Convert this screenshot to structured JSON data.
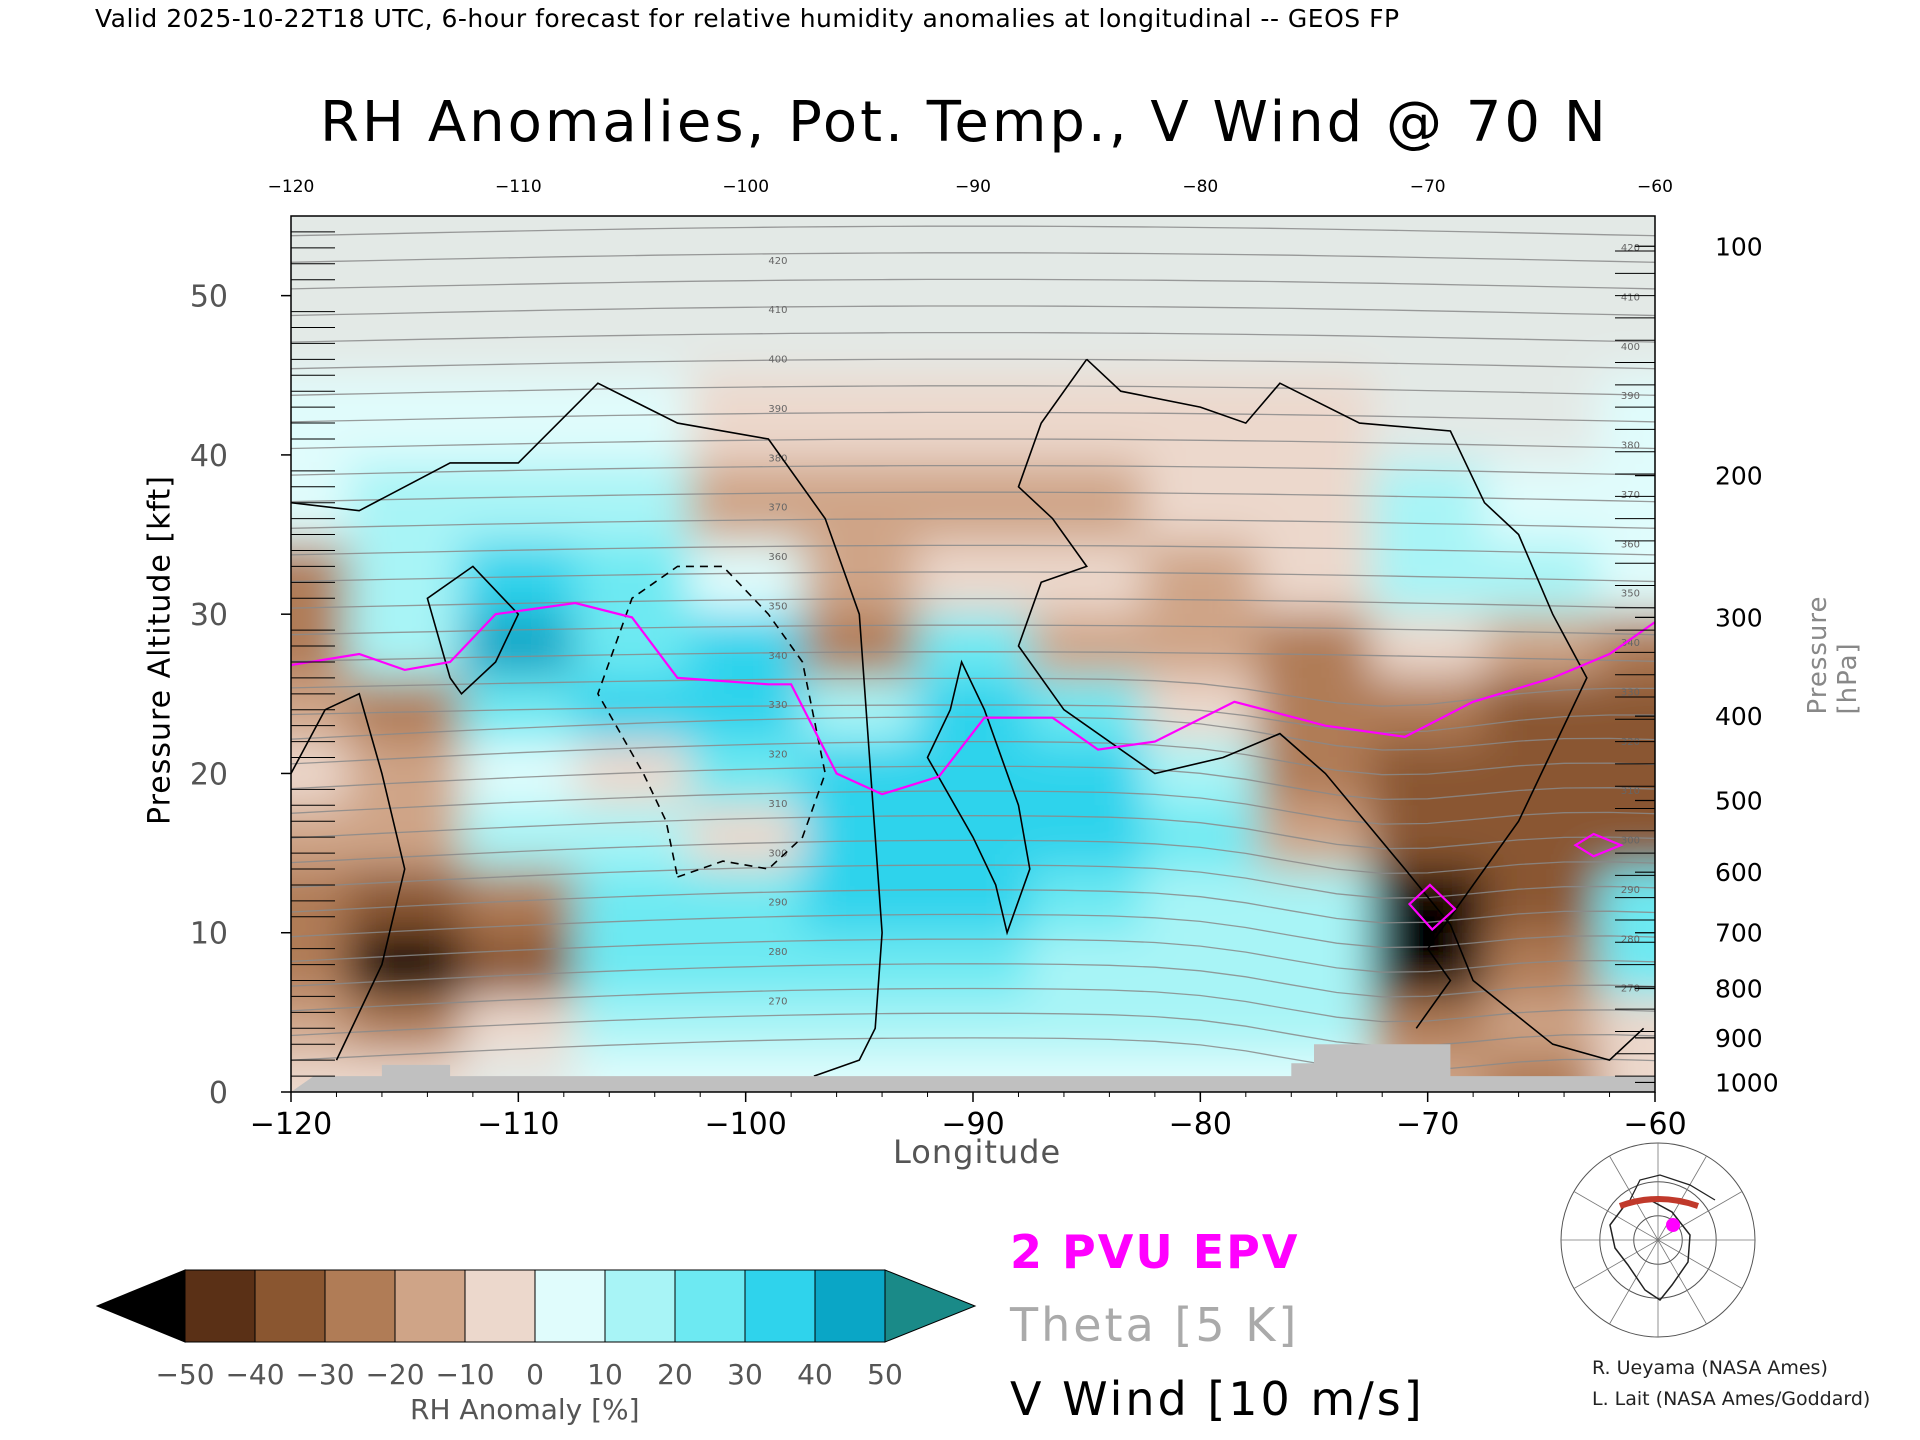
{
  "header": {
    "valid_line": "Valid 2025-10-22T18 UTC, 6-hour forecast for relative humidity anomalies at longitudinal -- GEOS FP",
    "title": "RH Anomalies, Pot. Temp., V Wind @ 70 N"
  },
  "chart_data": {
    "type": "heatmap",
    "title": "RH Anomalies, Pot. Temp., V Wind @ 70 N",
    "xlabel": "Longitude",
    "ylabel_left": "Pressure Altitude [kft]",
    "ylabel_right": "Pressure [hPa]",
    "xlim": [
      -120,
      -60
    ],
    "ylim": [
      0,
      55
    ],
    "x_ticks": [
      -120,
      -110,
      -100,
      -90,
      -80,
      -70,
      -60
    ],
    "x_tick_labels": [
      "−120",
      "−110",
      "−100",
      "−90",
      "−80",
      "−70",
      "−60"
    ],
    "y_ticks": [
      0,
      10,
      20,
      30,
      40,
      50
    ],
    "right_axis": {
      "labels": [
        "100",
        "200",
        "300",
        "400",
        "500",
        "600",
        "700",
        "800",
        "900",
        "1000"
      ],
      "kft": [
        53.1,
        38.7,
        29.8,
        23.6,
        18.3,
        13.8,
        10.0,
        6.5,
        3.4,
        0.6
      ]
    },
    "rh_anomaly_field": {
      "description_units": "%",
      "rows_kft": [
        54,
        48,
        42,
        37,
        32,
        28,
        24,
        20,
        16,
        12,
        8,
        4,
        1
      ],
      "cols_lon": [
        -120,
        -115,
        -110,
        -105,
        -100,
        -95,
        -90,
        -85,
        -80,
        -75,
        -70,
        -65,
        -60
      ],
      "values": [
        [
          0,
          0,
          0,
          0,
          0,
          0,
          0,
          0,
          0,
          0,
          0,
          0,
          0
        ],
        [
          0,
          0,
          0,
          0,
          0,
          0,
          0,
          0,
          0,
          0,
          0,
          0,
          0
        ],
        [
          5,
          5,
          5,
          5,
          -5,
          -10,
          -5,
          -5,
          -5,
          -5,
          0,
          0,
          5
        ],
        [
          8,
          10,
          10,
          10,
          -15,
          -20,
          -15,
          -15,
          -10,
          -5,
          10,
          8,
          5
        ],
        [
          -25,
          15,
          35,
          20,
          5,
          -20,
          -10,
          -10,
          -20,
          -5,
          15,
          10,
          5
        ],
        [
          -25,
          10,
          40,
          25,
          30,
          -30,
          25,
          -15,
          -20,
          -25,
          -10,
          -15,
          -30
        ],
        [
          -20,
          -25,
          20,
          30,
          30,
          15,
          30,
          25,
          -5,
          -30,
          -30,
          -35,
          -40
        ],
        [
          -10,
          -20,
          5,
          -10,
          25,
          30,
          30,
          30,
          15,
          -25,
          -35,
          -40,
          -40
        ],
        [
          -20,
          -15,
          10,
          15,
          -10,
          30,
          35,
          30,
          20,
          -15,
          -35,
          -40,
          -35
        ],
        [
          -30,
          -35,
          -30,
          20,
          25,
          30,
          35,
          25,
          15,
          10,
          -55,
          -40,
          20
        ],
        [
          -30,
          -55,
          -35,
          20,
          20,
          20,
          20,
          15,
          15,
          10,
          -55,
          -30,
          20
        ],
        [
          -15,
          -25,
          -10,
          10,
          15,
          15,
          15,
          10,
          10,
          10,
          -30,
          -20,
          -10
        ],
        [
          -10,
          -5,
          0,
          5,
          5,
          5,
          5,
          5,
          5,
          5,
          -20,
          -25,
          -10
        ]
      ]
    },
    "theta_contour_labels": [
      "420",
      "410",
      "400",
      "390",
      "380",
      "370",
      "360",
      "350",
      "340",
      "330",
      "320",
      "310",
      "300",
      "290",
      "280",
      "270"
    ],
    "v_wind_contour_labels": [
      "0",
      "10",
      "-10"
    ],
    "epv_2pvu_line": [
      {
        "lon": -120,
        "kft": 26.8
      },
      {
        "lon": -117,
        "kft": 27.5
      },
      {
        "lon": -115,
        "kft": 26.5
      },
      {
        "lon": -113,
        "kft": 27.0
      },
      {
        "lon": -111,
        "kft": 30.0
      },
      {
        "lon": -107.5,
        "kft": 30.7
      },
      {
        "lon": -105,
        "kft": 29.8
      },
      {
        "lon": -103,
        "kft": 26.0
      },
      {
        "lon": -99,
        "kft": 25.6
      },
      {
        "lon": -98,
        "kft": 25.6
      },
      {
        "lon": -96,
        "kft": 20.0
      },
      {
        "lon": -94,
        "kft": 18.7
      },
      {
        "lon": -91.5,
        "kft": 19.8
      },
      {
        "lon": -89.5,
        "kft": 23.5
      },
      {
        "lon": -86.5,
        "kft": 23.5
      },
      {
        "lon": -84.5,
        "kft": 21.5
      },
      {
        "lon": -82,
        "kft": 22.0
      },
      {
        "lon": -78.5,
        "kft": 24.5
      },
      {
        "lon": -74.5,
        "kft": 23.0
      },
      {
        "lon": -71,
        "kft": 22.3
      },
      {
        "lon": -68,
        "kft": 24.5
      },
      {
        "lon": -64.5,
        "kft": 26.0
      },
      {
        "lon": -62,
        "kft": 27.5
      },
      {
        "lon": -60,
        "kft": 29.5
      }
    ],
    "colorbar": {
      "label": "RH Anomaly [%]",
      "ticks": [
        "−50",
        "−40",
        "−30",
        "−20",
        "−10",
        "0",
        "10",
        "20",
        "30",
        "40",
        "50"
      ],
      "colors": [
        "#2a1608",
        "#5a3016",
        "#8a5630",
        "#b07c56",
        "#cfa487",
        "#ecd8cc",
        "#e0fcfc",
        "#a8f4f6",
        "#6de9f2",
        "#2fd3ec",
        "#0aa6c6",
        "#087d96",
        "#1a8a88"
      ],
      "under_color": "#000000",
      "over_color": "#1a8a88"
    },
    "terrain_color": "#c0c0c0",
    "legend": {
      "epv": "2 PVU EPV",
      "theta": "Theta [5 K]",
      "v_wind": "V Wind [10 m/s]",
      "epv_color": "#ff00ff",
      "theta_color": "#aaaaaa",
      "v_wind_color": "#000000"
    }
  },
  "credits": {
    "line1": "R. Ueyama (NASA Ames)",
    "line2": "L. Lait (NASA Ames/Goddard)"
  }
}
